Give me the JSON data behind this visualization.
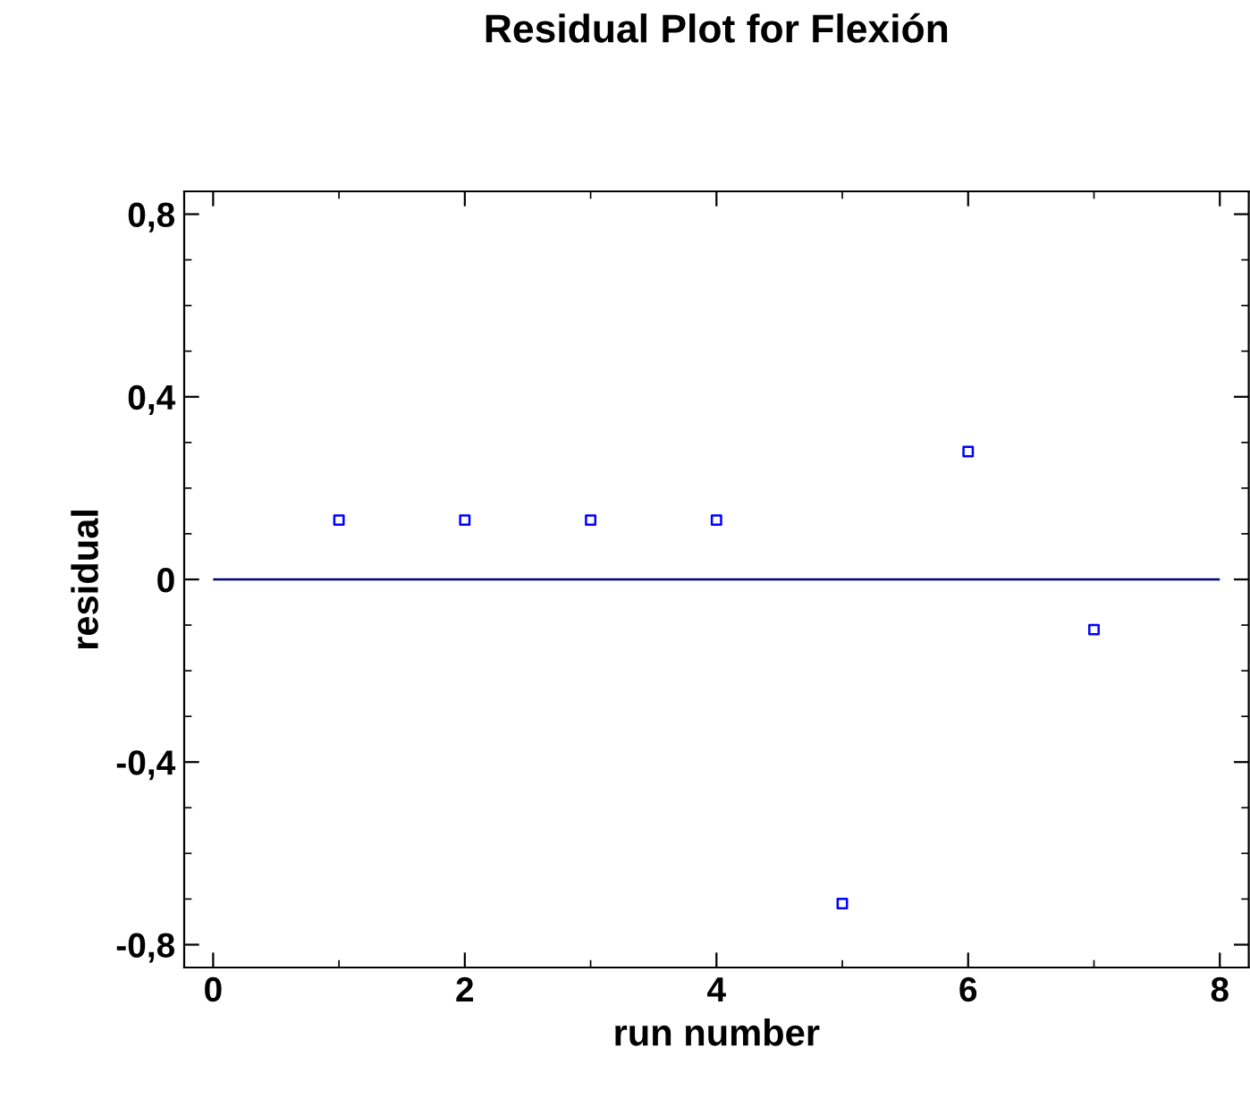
{
  "chart_data": {
    "type": "scatter",
    "title": "Residual Plot for Flexión",
    "xlabel": "run number",
    "ylabel": "residual",
    "x": [
      1,
      2,
      3,
      4,
      5,
      6,
      7
    ],
    "values": [
      0.13,
      0.13,
      0.13,
      0.13,
      -0.71,
      0.28,
      -0.11
    ],
    "color": "#0000ff",
    "marker": "square",
    "xlim": [
      -0.23,
      8.23
    ],
    "xticks": [
      0,
      2,
      4,
      6,
      8
    ],
    "ylim": [
      -0.85,
      0.85
    ],
    "yticks": [
      {
        "value": -0.8,
        "label": "-0,8"
      },
      {
        "value": -0.4,
        "label": "-0,4"
      },
      0,
      {
        "value": 0.4,
        "label": "0,4"
      },
      {
        "value": 0.8,
        "label": "0,8"
      }
    ],
    "ref_lines": [
      {
        "axis": "y",
        "value": 0,
        "color": "#000080"
      }
    ]
  }
}
